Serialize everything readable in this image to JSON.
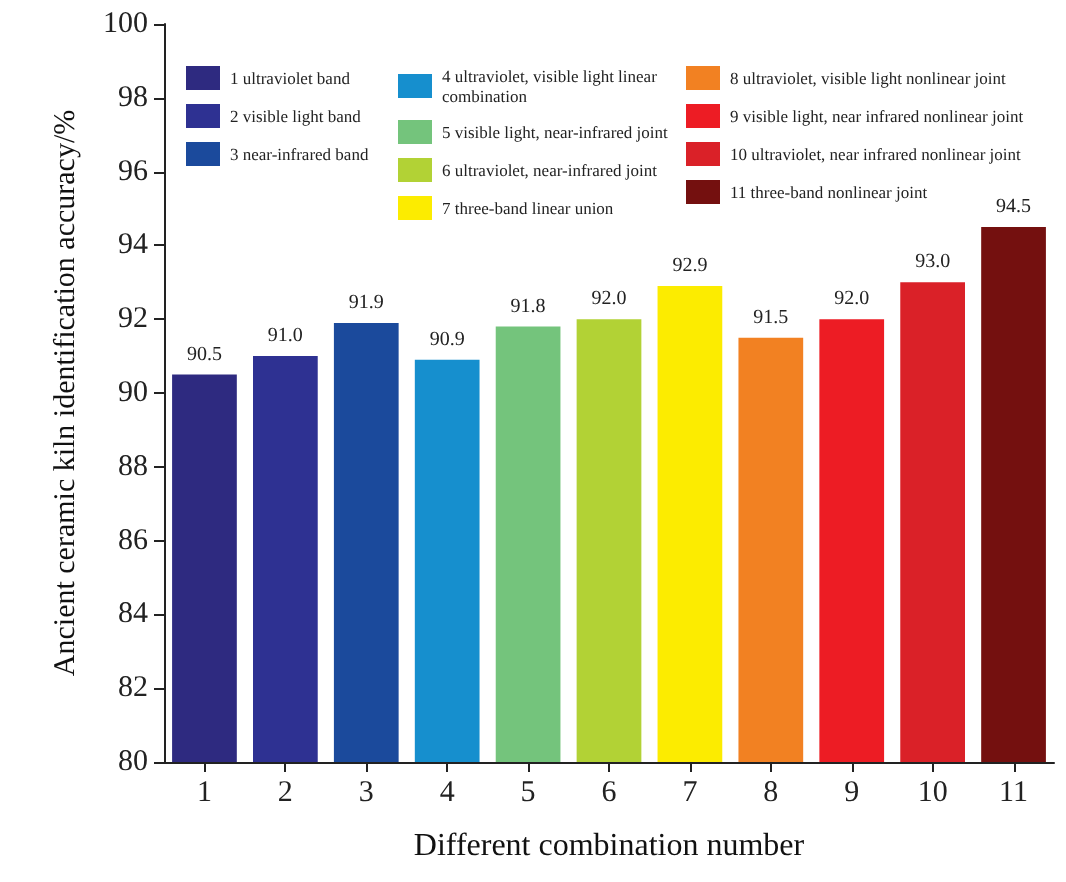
{
  "chart_data": {
    "type": "bar",
    "xlabel": "Different combination number",
    "ylabel": "Ancient ceramic kiln identification accuracy/%",
    "categories": [
      "1",
      "2",
      "3",
      "4",
      "5",
      "6",
      "7",
      "8",
      "9",
      "10",
      "11"
    ],
    "series": [
      {
        "name": "1 ultraviolet band",
        "color": "#2e2a80",
        "values": [
          90.5,
          null,
          null,
          null,
          null,
          null,
          null,
          null,
          null,
          null,
          null
        ],
        "value_labels": [
          "90.5",
          null,
          null,
          null,
          null,
          null,
          null,
          null,
          null,
          null,
          null
        ]
      },
      {
        "name": "2 visible light band",
        "color": "#2e3192",
        "values": [
          null,
          91.0,
          null,
          null,
          null,
          null,
          null,
          null,
          null,
          null,
          null
        ],
        "value_labels": [
          null,
          "91.0",
          null,
          null,
          null,
          null,
          null,
          null,
          null,
          null,
          null
        ]
      },
      {
        "name": "3 near-infrared band",
        "color": "#1b4a9c",
        "values": [
          null,
          null,
          91.9,
          null,
          null,
          null,
          null,
          null,
          null,
          null,
          null
        ],
        "value_labels": [
          null,
          null,
          "91.9",
          null,
          null,
          null,
          null,
          null,
          null,
          null,
          null
        ]
      },
      {
        "name": "4 ultraviolet, visible light linear combination",
        "color": "#168fce",
        "values": [
          null,
          null,
          null,
          90.9,
          null,
          null,
          null,
          null,
          null,
          null,
          null
        ],
        "value_labels": [
          null,
          null,
          null,
          "90.9",
          null,
          null,
          null,
          null,
          null,
          null,
          null
        ]
      },
      {
        "name": "5 visible light, near-infrared joint",
        "color": "#74c47c",
        "values": [
          null,
          null,
          null,
          null,
          91.8,
          null,
          null,
          null,
          null,
          null,
          null
        ],
        "value_labels": [
          null,
          null,
          null,
          null,
          "91.8",
          null,
          null,
          null,
          null,
          null,
          null
        ]
      },
      {
        "name": "6 ultraviolet, near-infrared joint",
        "color": "#b2d235",
        "values": [
          null,
          null,
          null,
          null,
          null,
          92.0,
          null,
          null,
          null,
          null,
          null
        ],
        "value_labels": [
          null,
          null,
          null,
          null,
          null,
          "92.0",
          null,
          null,
          null,
          null,
          null
        ]
      },
      {
        "name": "7 three-band linear union",
        "color": "#fcec00",
        "values": [
          null,
          null,
          null,
          null,
          null,
          null,
          92.9,
          null,
          null,
          null,
          null
        ],
        "value_labels": [
          null,
          null,
          null,
          null,
          null,
          null,
          "92.9",
          null,
          null,
          null,
          null
        ]
      },
      {
        "name": "8 ultraviolet, visible light nonlinear joint",
        "color": "#f28122",
        "values": [
          null,
          null,
          null,
          null,
          null,
          null,
          null,
          91.5,
          null,
          null,
          null
        ],
        "value_labels": [
          null,
          null,
          null,
          null,
          null,
          null,
          null,
          "91.5",
          null,
          null,
          null
        ]
      },
      {
        "name": "9 visible light, near infrared nonlinear joint",
        "color": "#ed1c24",
        "values": [
          null,
          null,
          null,
          null,
          null,
          null,
          null,
          null,
          92.0,
          null,
          null
        ],
        "value_labels": [
          null,
          null,
          null,
          null,
          null,
          null,
          null,
          null,
          "92.0",
          null,
          null
        ]
      },
      {
        "name": "10 ultraviolet, near infrared nonlinear joint",
        "color": "#da2128",
        "values": [
          null,
          null,
          null,
          null,
          null,
          null,
          null,
          null,
          null,
          93.0,
          null
        ],
        "value_labels": [
          null,
          null,
          null,
          null,
          null,
          null,
          null,
          null,
          null,
          "93.0",
          null
        ]
      },
      {
        "name": "11 three-band nonlinear joint",
        "color": "#74100f",
        "values": [
          null,
          null,
          null,
          null,
          null,
          null,
          null,
          null,
          null,
          null,
          94.5
        ],
        "value_labels": [
          null,
          null,
          null,
          null,
          null,
          null,
          null,
          null,
          null,
          null,
          "94.5"
        ]
      }
    ],
    "ylim": [
      80,
      100
    ],
    "yticks": [
      80,
      82,
      84,
      86,
      88,
      90,
      92,
      94,
      96,
      98,
      100
    ],
    "grid": false,
    "legend": "top"
  }
}
